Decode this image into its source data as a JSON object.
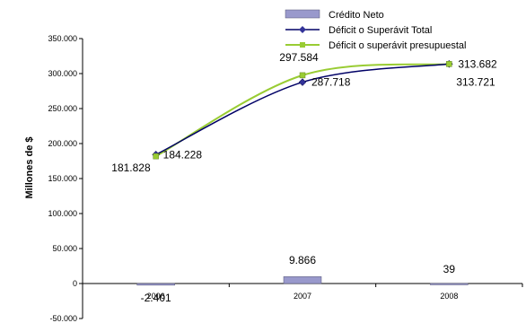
{
  "chart_data": {
    "type": "bar",
    "categories": [
      "2006",
      "2007",
      "2008"
    ],
    "ylabel": "Millones de $",
    "ylim": [
      -50000,
      350000
    ],
    "y_ticks": [
      -50000,
      0,
      50000,
      100000,
      150000,
      200000,
      250000,
      300000,
      350000
    ],
    "y_tick_labels": [
      "-50.000",
      "0",
      "50.000",
      "100.000",
      "150.000",
      "200.000",
      "250.000",
      "300.000",
      "350.000"
    ],
    "legend_position": "top",
    "grid": false,
    "series": [
      {
        "name": "Crédito Neto",
        "type": "bar",
        "values": [
          -2401,
          9866,
          39
        ],
        "labels": [
          "-2.401",
          "9.866",
          "39"
        ],
        "color": "#9999cc"
      },
      {
        "name": "Déficit o Superávit Total",
        "type": "line",
        "values": [
          184228,
          287718,
          313721
        ],
        "labels": [
          "184.228",
          "287.718",
          "313.721"
        ],
        "color": "#000066",
        "marker_color": "#333399"
      },
      {
        "name": "Déficit o superávit presupuestal",
        "type": "line",
        "values": [
          181828,
          297584,
          313682
        ],
        "labels": [
          "181.828",
          "297.584",
          "313.682"
        ],
        "color": "#99cc33",
        "marker_color": "#99cc33"
      }
    ]
  }
}
